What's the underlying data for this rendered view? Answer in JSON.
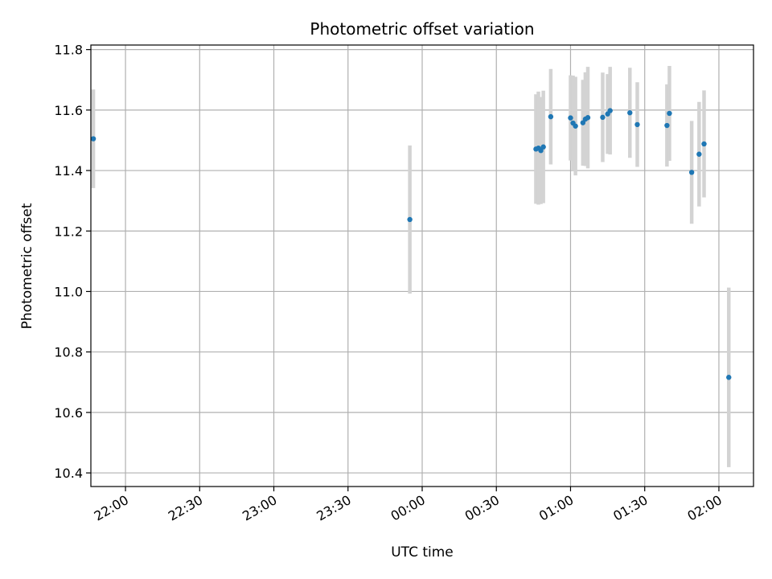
{
  "chart_data": {
    "type": "scatter",
    "title": "Photometric offset variation",
    "xlabel": "UTC time",
    "ylabel": "Photometric offset",
    "xlim": [
      "21:46",
      "02:14"
    ],
    "ylim": [
      10.355,
      11.815
    ],
    "x_ticks": [
      "22:00",
      "22:30",
      "23:00",
      "23:30",
      "00:00",
      "00:30",
      "01:00",
      "01:30",
      "02:00"
    ],
    "y_ticks": [
      "10.4",
      "10.6",
      "10.8",
      "11.0",
      "11.2",
      "11.4",
      "11.6",
      "11.8"
    ],
    "grid": true,
    "point_color": "#1f77b4",
    "errorbar_color": "#d3d3d3",
    "points": [
      {
        "time": "21:47",
        "y": 11.505,
        "err": 0.163
      },
      {
        "time": "23:55",
        "y": 11.238,
        "err": 0.245
      },
      {
        "time": "00:46",
        "y": 11.471,
        "err": 0.181
      },
      {
        "time": "00:47",
        "y": 11.474,
        "err": 0.187
      },
      {
        "time": "00:48",
        "y": 11.466,
        "err": 0.177
      },
      {
        "time": "00:49",
        "y": 11.478,
        "err": 0.186
      },
      {
        "time": "00:52",
        "y": 11.578,
        "err": 0.158
      },
      {
        "time": "01:00",
        "y": 11.574,
        "err": 0.141
      },
      {
        "time": "01:01",
        "y": 11.557,
        "err": 0.157
      },
      {
        "time": "01:02",
        "y": 11.547,
        "err": 0.163
      },
      {
        "time": "01:05",
        "y": 11.558,
        "err": 0.142
      },
      {
        "time": "01:06",
        "y": 11.57,
        "err": 0.155
      },
      {
        "time": "01:07",
        "y": 11.575,
        "err": 0.168
      },
      {
        "time": "01:13",
        "y": 11.576,
        "err": 0.148
      },
      {
        "time": "01:15",
        "y": 11.587,
        "err": 0.132
      },
      {
        "time": "01:16",
        "y": 11.598,
        "err": 0.145
      },
      {
        "time": "01:24",
        "y": 11.591,
        "err": 0.149
      },
      {
        "time": "01:27",
        "y": 11.552,
        "err": 0.14
      },
      {
        "time": "01:39",
        "y": 11.549,
        "err": 0.136
      },
      {
        "time": "01:40",
        "y": 11.589,
        "err": 0.157
      },
      {
        "time": "01:49",
        "y": 11.394,
        "err": 0.17
      },
      {
        "time": "01:52",
        "y": 11.454,
        "err": 0.173
      },
      {
        "time": "01:54",
        "y": 11.488,
        "err": 0.177
      },
      {
        "time": "02:04",
        "y": 10.716,
        "err": 0.297
      }
    ]
  }
}
